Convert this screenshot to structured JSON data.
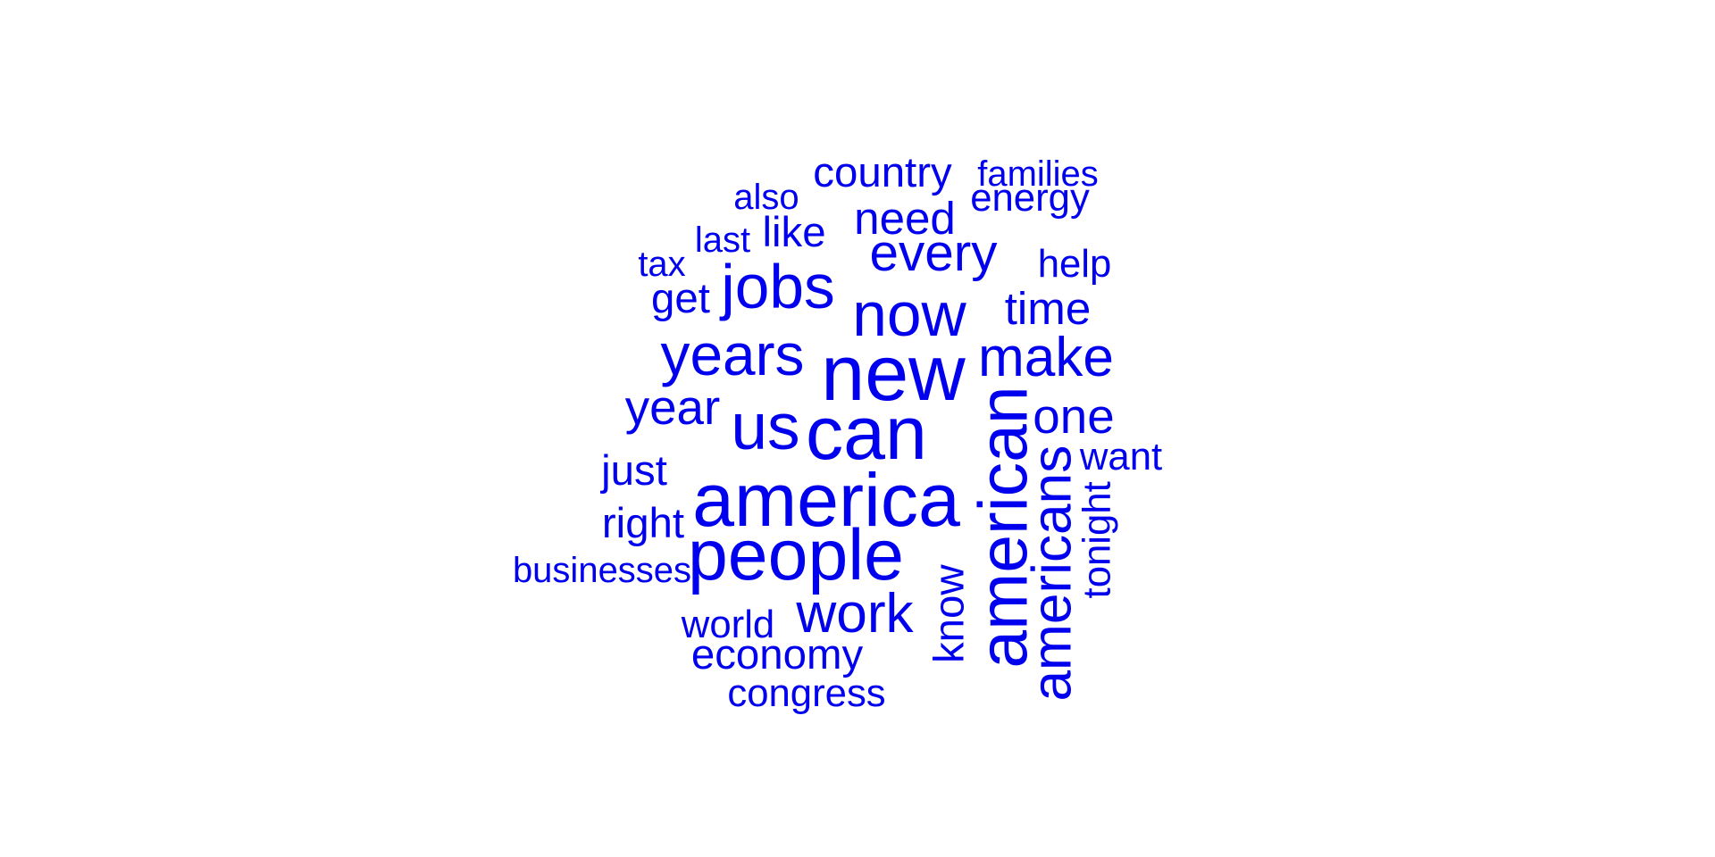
{
  "word_cloud": {
    "color": "#0000ee",
    "words": [
      {
        "text": "new",
        "weight": 10,
        "rotated": false
      },
      {
        "text": "can",
        "weight": 9.5,
        "rotated": false
      },
      {
        "text": "america",
        "weight": 9.5,
        "rotated": false
      },
      {
        "text": "people",
        "weight": 9,
        "rotated": false
      },
      {
        "text": "american",
        "weight": 8.5,
        "rotated": true
      },
      {
        "text": "us",
        "weight": 8,
        "rotated": false
      },
      {
        "text": "now",
        "weight": 7.5,
        "rotated": false
      },
      {
        "text": "jobs",
        "weight": 7.5,
        "rotated": false
      },
      {
        "text": "years",
        "weight": 7,
        "rotated": false
      },
      {
        "text": "work",
        "weight": 6.5,
        "rotated": false
      },
      {
        "text": "americans",
        "weight": 6.5,
        "rotated": true
      },
      {
        "text": "make",
        "weight": 6.5,
        "rotated": false
      },
      {
        "text": "every",
        "weight": 6,
        "rotated": false
      },
      {
        "text": "one",
        "weight": 5.5,
        "rotated": false
      },
      {
        "text": "year",
        "weight": 5.5,
        "rotated": false
      },
      {
        "text": "time",
        "weight": 5,
        "rotated": false
      },
      {
        "text": "need",
        "weight": 5,
        "rotated": false
      },
      {
        "text": "country",
        "weight": 4.5,
        "rotated": false
      },
      {
        "text": "know",
        "weight": 4.5,
        "rotated": true
      },
      {
        "text": "just",
        "weight": 4.5,
        "rotated": false
      },
      {
        "text": "right",
        "weight": 4.5,
        "rotated": false
      },
      {
        "text": "economy",
        "weight": 4.5,
        "rotated": false
      },
      {
        "text": "like",
        "weight": 4.5,
        "rotated": false
      },
      {
        "text": "get",
        "weight": 4.5,
        "rotated": false
      },
      {
        "text": "world",
        "weight": 4,
        "rotated": false
      },
      {
        "text": "energy",
        "weight": 4,
        "rotated": false
      },
      {
        "text": "tonight",
        "weight": 4,
        "rotated": true
      },
      {
        "text": "congress",
        "weight": 4,
        "rotated": false
      },
      {
        "text": "help",
        "weight": 4,
        "rotated": false
      },
      {
        "text": "want",
        "weight": 4,
        "rotated": false
      },
      {
        "text": "last",
        "weight": 3.5,
        "rotated": false
      },
      {
        "text": "also",
        "weight": 3.5,
        "rotated": false
      },
      {
        "text": "families",
        "weight": 3.5,
        "rotated": false
      },
      {
        "text": "businesses",
        "weight": 3.5,
        "rotated": false
      },
      {
        "text": "tax",
        "weight": 3.5,
        "rotated": false
      }
    ]
  }
}
